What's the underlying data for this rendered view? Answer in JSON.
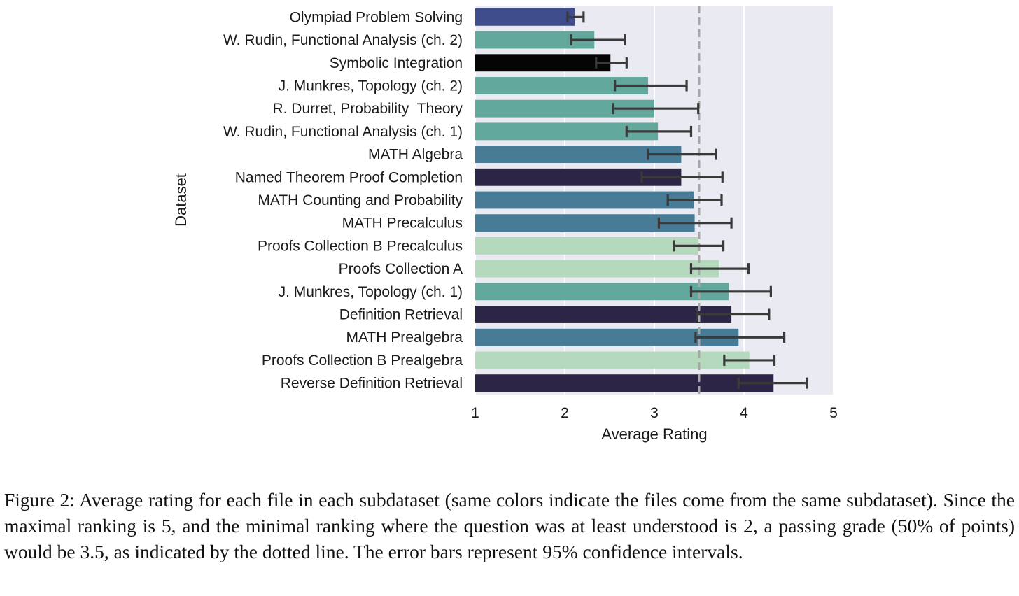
{
  "chart_data": {
    "type": "bar",
    "orientation": "horizontal",
    "xlabel": "Average Rating",
    "ylabel": "Dataset",
    "xlim": [
      1,
      5
    ],
    "xticks": [
      1,
      2,
      3,
      4,
      5
    ],
    "grid": true,
    "reference_line": {
      "x": 3.5,
      "style": "dashed"
    },
    "categories": [
      "Olympiad Problem Solving",
      "W. Rudin, Functional Analysis (ch. 2)",
      "Symbolic Integration",
      "J. Munkres, Topology (ch. 2)",
      "R. Durret, Probability  Theory",
      "W. Rudin, Functional Analysis (ch. 1)",
      "MATH Algebra",
      "Named Theorem Proof Completion",
      "MATH Counting and Probability",
      "MATH Precalculus",
      "Proofs Collection B Precalculus",
      "Proofs Collection A",
      "J. Munkres, Topology (ch. 1)",
      "Definition Retrieval",
      "MATH Prealgebra",
      "Proofs Collection B Prealgebra",
      "Reverse Definition Retrieval"
    ],
    "values": [
      2.11,
      2.33,
      2.51,
      2.93,
      3.0,
      3.04,
      3.3,
      3.3,
      3.44,
      3.45,
      3.49,
      3.72,
      3.83,
      3.86,
      3.94,
      4.06,
      4.33
    ],
    "ci_low": [
      2.03,
      2.07,
      2.35,
      2.56,
      2.54,
      2.69,
      2.93,
      2.86,
      3.15,
      3.05,
      3.22,
      3.41,
      3.41,
      3.48,
      3.46,
      3.78,
      3.94
    ],
    "ci_high": [
      2.21,
      2.67,
      2.69,
      3.36,
      3.49,
      3.41,
      3.69,
      3.76,
      3.75,
      3.86,
      3.77,
      4.05,
      4.3,
      4.28,
      4.45,
      4.34,
      4.7
    ],
    "colors": [
      "#3f4d8c",
      "#63a89c",
      "#050505",
      "#63a89c",
      "#63a89c",
      "#63a89c",
      "#477b96",
      "#2d2545",
      "#477b96",
      "#477b96",
      "#b5d9bd",
      "#b5d9bd",
      "#63a89c",
      "#2d2545",
      "#477b96",
      "#b5d9bd",
      "#2d2545"
    ],
    "background_color": "#eaeaf2",
    "errorbar_color": "#3a3a3a"
  },
  "caption": "Figure 2: Average rating for each file in each subdataset (same colors indicate the files come from the same subdataset). Since the maximal ranking is 5, and the minimal ranking where the question was at least understood is 2, a passing grade (50% of points) would be 3.5, as indicated by the dotted line. The error bars represent 95% confidence intervals."
}
